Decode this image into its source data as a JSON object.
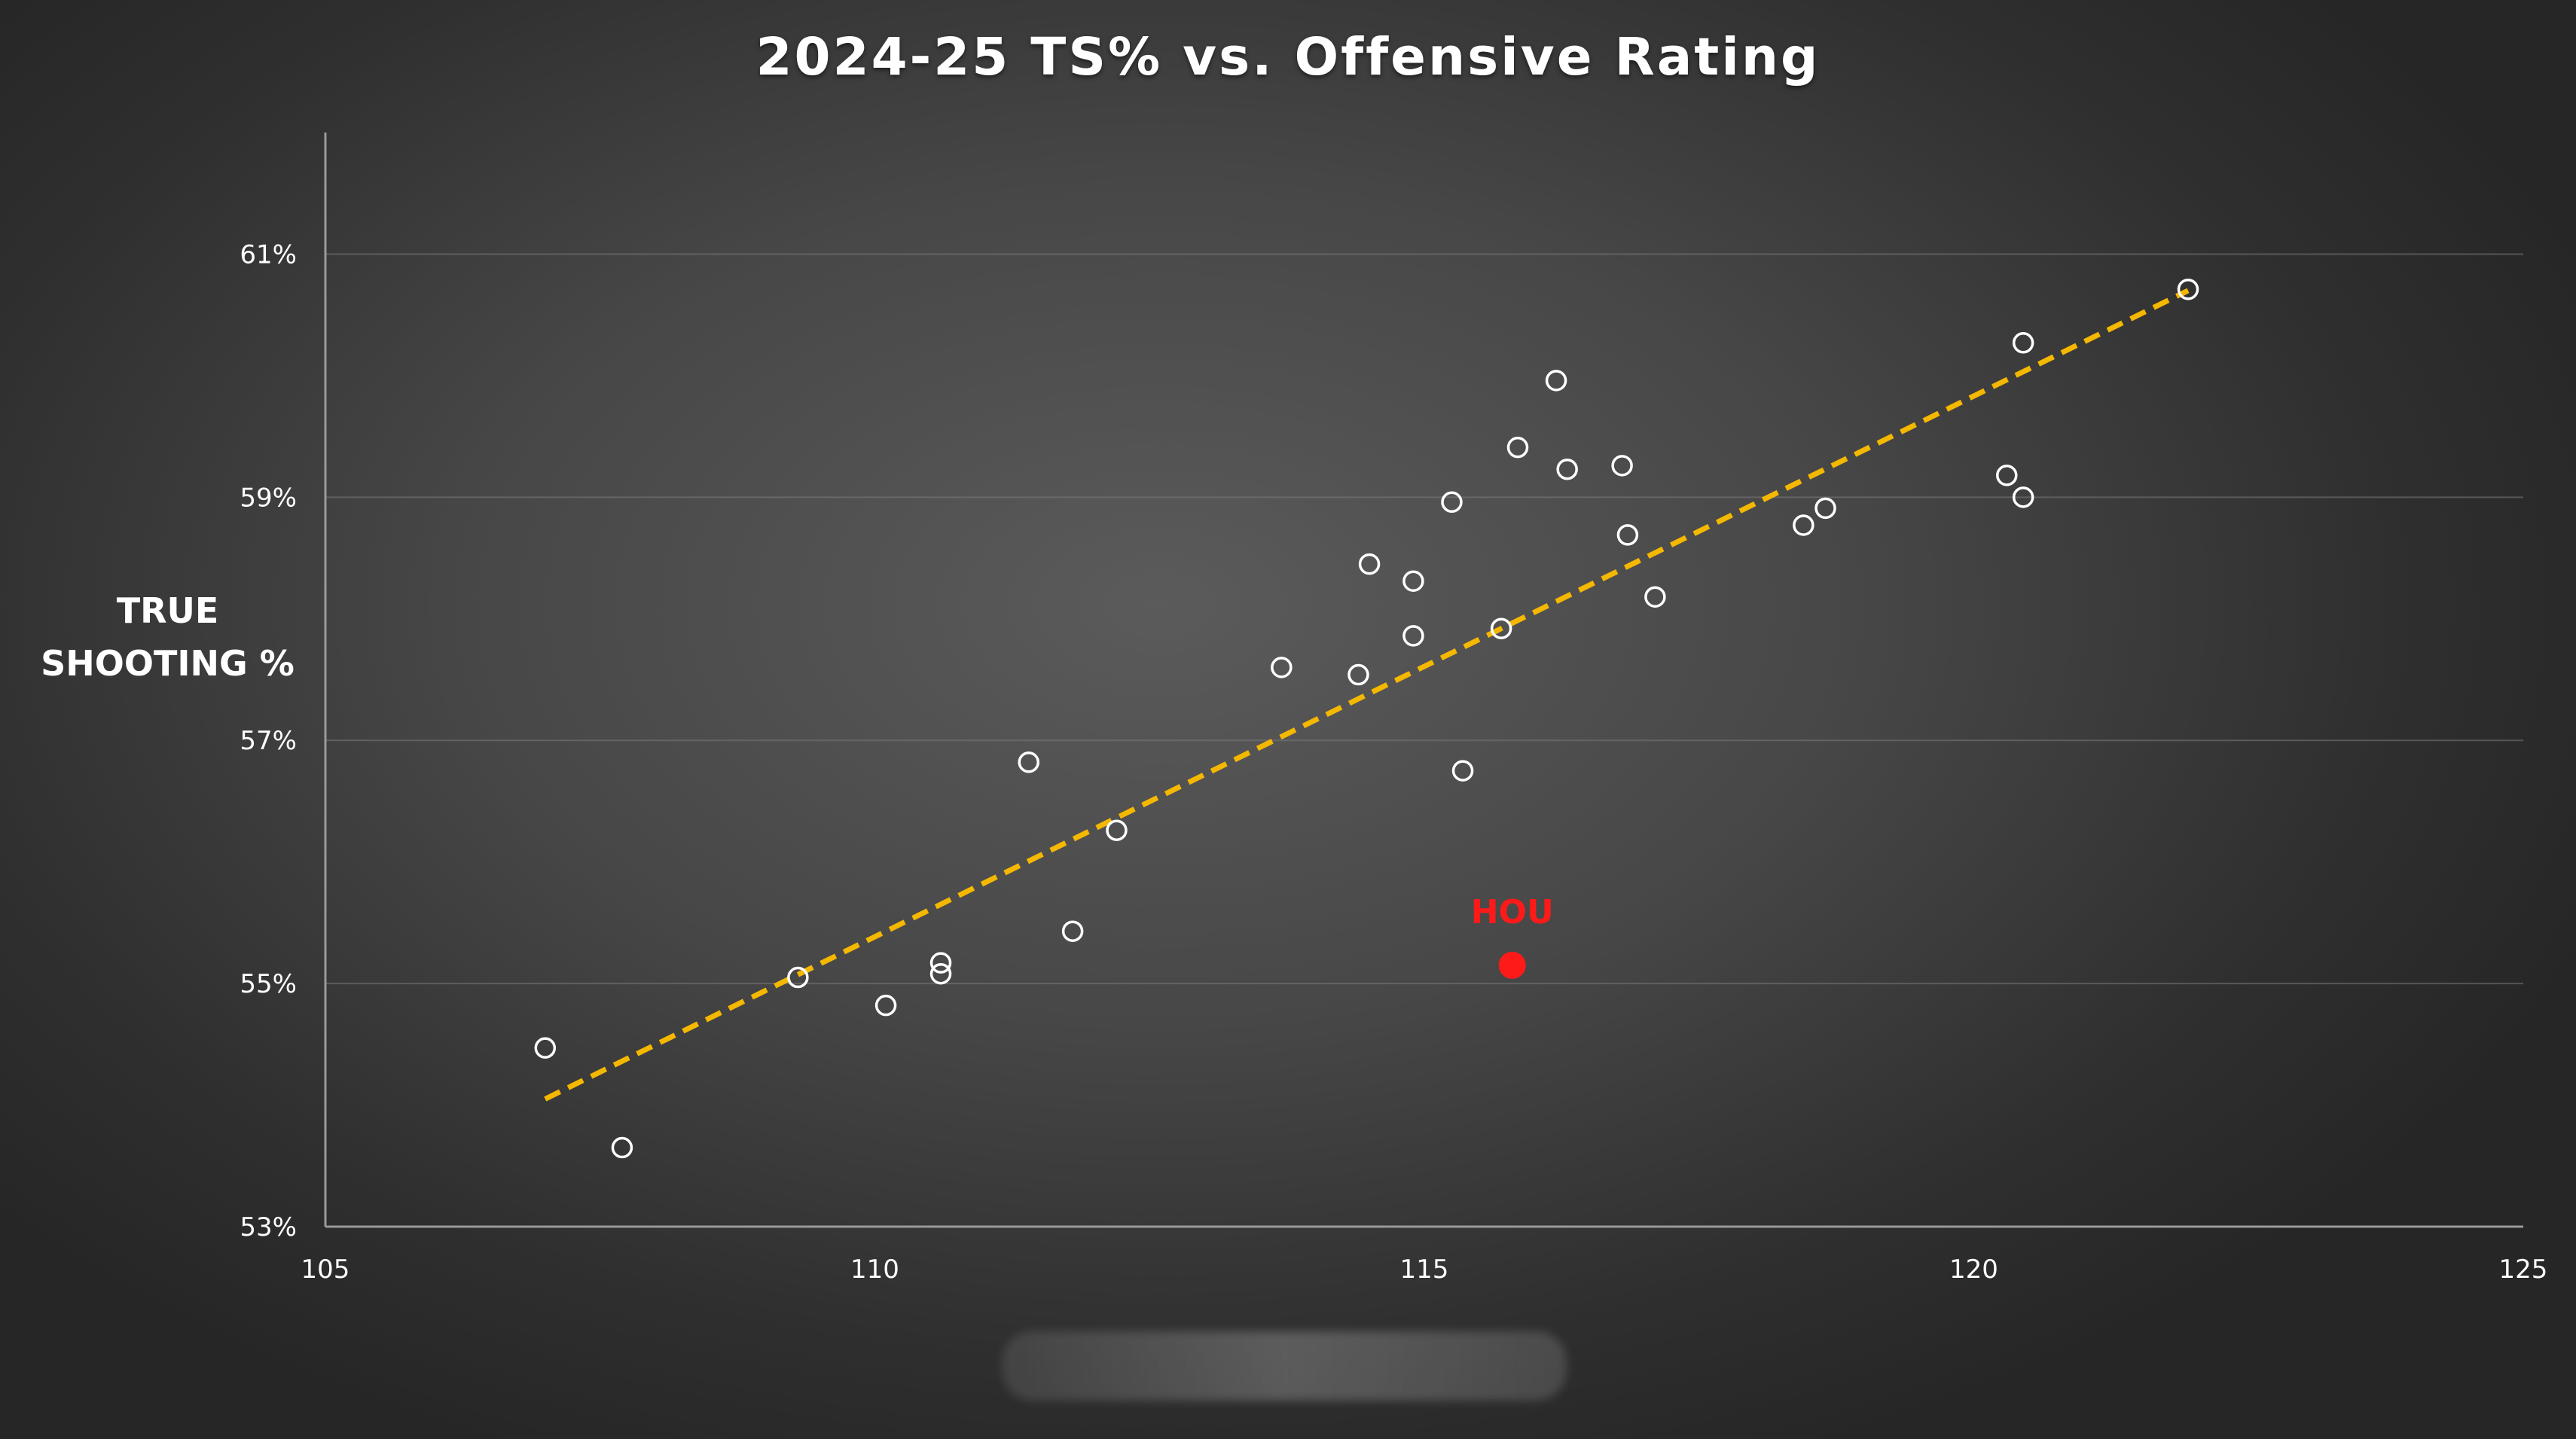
{
  "chart_data": {
    "type": "scatter",
    "title": "2024-25 TS% vs. Offensive Rating",
    "ylabel": [
      "TRUE",
      "SHOOTING %"
    ],
    "xlabel": "",
    "xlim": [
      105,
      125
    ],
    "ylim": [
      53,
      62
    ],
    "x_ticks": [
      105,
      110,
      115,
      120,
      125
    ],
    "y_ticks": [
      {
        "value": 53,
        "label": "53%"
      },
      {
        "value": 55,
        "label": "55%"
      },
      {
        "value": 57,
        "label": "57%"
      },
      {
        "value": 59,
        "label": "59%"
      },
      {
        "value": 61,
        "label": "61%"
      }
    ],
    "grid": "horizontal",
    "series": [
      {
        "points": [
          {
            "x": 107.0,
            "y": 54.47
          },
          {
            "x": 107.7,
            "y": 53.65
          },
          {
            "x": 109.3,
            "y": 55.05
          },
          {
            "x": 110.1,
            "y": 54.82
          },
          {
            "x": 110.6,
            "y": 55.17
          },
          {
            "x": 110.6,
            "y": 55.08
          },
          {
            "x": 111.4,
            "y": 56.82
          },
          {
            "x": 111.8,
            "y": 55.43
          },
          {
            "x": 112.2,
            "y": 56.26
          },
          {
            "x": 113.7,
            "y": 57.6
          },
          {
            "x": 114.4,
            "y": 57.54
          },
          {
            "x": 114.5,
            "y": 58.45
          },
          {
            "x": 114.9,
            "y": 58.31
          },
          {
            "x": 114.9,
            "y": 57.86
          },
          {
            "x": 115.25,
            "y": 58.96
          },
          {
            "x": 115.35,
            "y": 56.75
          },
          {
            "x": 115.7,
            "y": 57.92
          },
          {
            "x": 115.85,
            "y": 59.41
          },
          {
            "x": 116.2,
            "y": 59.96
          },
          {
            "x": 116.3,
            "y": 59.23
          },
          {
            "x": 116.8,
            "y": 59.26
          },
          {
            "x": 116.85,
            "y": 58.69
          },
          {
            "x": 117.1,
            "y": 58.18
          },
          {
            "x": 118.45,
            "y": 58.77
          },
          {
            "x": 118.65,
            "y": 58.91
          },
          {
            "x": 120.3,
            "y": 59.18
          },
          {
            "x": 120.45,
            "y": 60.27
          },
          {
            "x": 120.45,
            "y": 59.0
          },
          {
            "x": 121.95,
            "y": 60.71
          }
        ]
      }
    ],
    "highlight": {
      "label": "HOU",
      "x": 115.8,
      "y": 55.15,
      "color": "#ff1a1a"
    },
    "trendline": {
      "x1": 107.0,
      "y1": 54.05,
      "x2": 121.95,
      "y2": 60.7,
      "color": "#f5b800",
      "style": "dashed"
    }
  }
}
